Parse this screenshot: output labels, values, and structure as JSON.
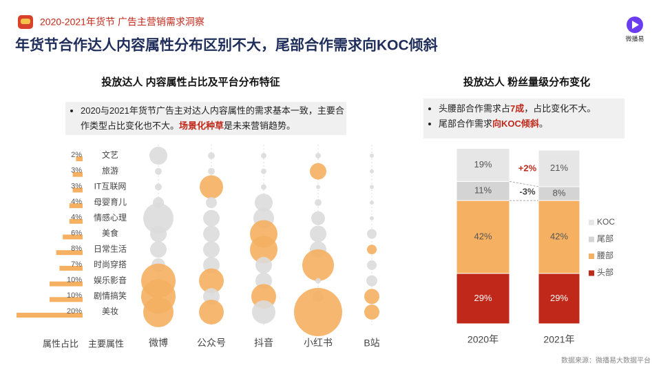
{
  "header": {
    "subtitle": "2020-2021年货节 广告主营销需求洞察",
    "title": "年货节合作达人内容属性分布区别不大，尾部合作需求向KOC倾斜",
    "logo": "微播易"
  },
  "left_panel": {
    "title": "投放达人 内容属性占比及平台分布特征",
    "bullets": [
      [
        "2020与2021年货节广告主对达人内容属性的需求基本一致，主要合作类型占比变化也不大。",
        "场景化种草",
        "是未来营销趋势。"
      ]
    ]
  },
  "right_panel": {
    "title": "投放达人 粉丝量级分布变化",
    "bullets": [
      [
        "头腰部合作需求占",
        "7成",
        "，占比变化不大。"
      ],
      [
        "尾部合作需求",
        "向KOC倾斜",
        "。"
      ]
    ]
  },
  "chart_data": [
    {
      "type": "bubble",
      "x_label_share": "属性占比",
      "x_label_category": "主要属性",
      "categories": [
        "文艺",
        "旅游",
        "IT互联网",
        "母婴育儿",
        "情感心理",
        "美食",
        "日常生活",
        "时尚穿搭",
        "娱乐影音",
        "剧情搞笑",
        "美妆"
      ],
      "share": {
        "color": "#f5b062",
        "values": [
          2,
          3,
          3,
          4,
          4,
          6,
          8,
          7,
          10,
          10,
          20
        ],
        "value_labels": [
          "2%",
          "3%",
          "3%",
          "4%",
          "4%",
          "6%",
          "8%",
          "7%",
          "10%",
          "10%",
          "20%"
        ]
      },
      "series": [
        {
          "name": "微博",
          "values": [
            13,
            5,
            5,
            8,
            22,
            12,
            12,
            10,
            25,
            25,
            22
          ],
          "colors": [
            "#dcdcdc",
            "#dcdcdc",
            "#dcdcdc",
            "#dcdcdc",
            "#dcdcdc",
            "#dcdcdc",
            "#dcdcdc",
            "#dcdcdc",
            "#f5b062",
            "#f5b062",
            "#f5b062"
          ]
        },
        {
          "name": "公众号",
          "values": [
            5,
            5,
            17,
            8,
            12,
            12,
            12,
            12,
            18,
            12,
            18
          ],
          "colors": [
            "#dcdcdc",
            "#dcdcdc",
            "#f5b062",
            "#dcdcdc",
            "#dcdcdc",
            "#dcdcdc",
            "#dcdcdc",
            "#dcdcdc",
            "#f5b062",
            "#dcdcdc",
            "#f5b062"
          ]
        },
        {
          "name": "抖音",
          "values": [
            4,
            4,
            4,
            13,
            15,
            20,
            20,
            12,
            12,
            18,
            17
          ],
          "colors": [
            "#dcdcdc",
            "#dcdcdc",
            "#dcdcdc",
            "#dcdcdc",
            "#dcdcdc",
            "#f5b062",
            "#f5b062",
            "#dcdcdc",
            "#dcdcdc",
            "#f5b062",
            "#dcdcdc"
          ]
        },
        {
          "name": "小红书",
          "values": [
            4,
            12,
            3,
            5,
            10,
            12,
            12,
            23,
            4,
            8,
            35
          ],
          "colors": [
            "#dcdcdc",
            "#f5b062",
            "#dcdcdc",
            "#dcdcdc",
            "#dcdcdc",
            "#dcdcdc",
            "#dcdcdc",
            "#f5b062",
            "#dcdcdc",
            "#dcdcdc",
            "#f5b062"
          ]
        },
        {
          "name": "B站",
          "values": [
            3,
            3,
            3,
            3,
            3,
            7,
            7,
            7,
            8,
            11,
            11
          ],
          "colors": [
            "#dcdcdc",
            "#dcdcdc",
            "#dcdcdc",
            "#dcdcdc",
            "#dcdcdc",
            "#dcdcdc",
            "#f5b062",
            "#dcdcdc",
            "#dcdcdc",
            "#f5b062",
            "#f5b062"
          ]
        }
      ]
    },
    {
      "type": "stacked_bar",
      "categories": [
        "2020年",
        "2021年"
      ],
      "ylim": [
        0,
        100
      ],
      "series": [
        {
          "name": "头部",
          "color": "#c0281a",
          "values": [
            29,
            29
          ],
          "value_labels": [
            "29%",
            "29%"
          ]
        },
        {
          "name": "腰部",
          "color": "#f5b062",
          "values": [
            42,
            42
          ],
          "value_labels": [
            "42%",
            "42%"
          ]
        },
        {
          "name": "尾部",
          "color": "#d4d4d4",
          "values": [
            11,
            8
          ],
          "value_labels": [
            "11%",
            "8%"
          ]
        },
        {
          "name": "KOC",
          "color": "#e6e6e6",
          "values": [
            19,
            21
          ],
          "value_labels": [
            "19%",
            "21%"
          ]
        }
      ],
      "annotations": [
        "+2%",
        "-3%"
      ]
    }
  ],
  "footer": "数据来源：微播易大数据平台"
}
